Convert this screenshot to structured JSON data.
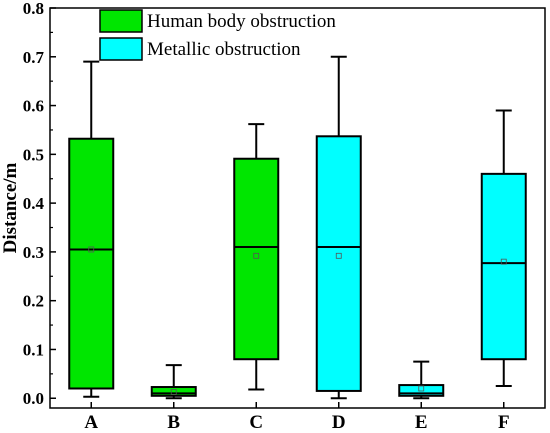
{
  "chart_data": {
    "type": "box",
    "ylabel": "Distance/m",
    "xlabel": "",
    "ylim": [
      -0.02,
      0.8
    ],
    "yticks": [
      "0.0",
      "0.1",
      "0.2",
      "0.3",
      "0.4",
      "0.5",
      "0.6",
      "0.7",
      "0.8"
    ],
    "categories": [
      "A",
      "B",
      "C",
      "D",
      "E",
      "F"
    ],
    "legend": {
      "placement": "top-left inside"
    },
    "series": [
      {
        "name": "Human body obstruction",
        "color": "#00e600",
        "categories": [
          "A",
          "B",
          "C"
        ]
      },
      {
        "name": "Metallic obstruction",
        "color": "#00ffff",
        "categories": [
          "D",
          "E",
          "F"
        ]
      }
    ],
    "boxes": [
      {
        "category": "A",
        "series": 0,
        "whisker_low": 0.003,
        "q1": 0.02,
        "median": 0.305,
        "q3": 0.532,
        "whisker_high": 0.69,
        "mean": 0.305
      },
      {
        "category": "B",
        "series": 0,
        "whisker_low": 0.0,
        "q1": 0.005,
        "median": 0.01,
        "q3": 0.023,
        "whisker_high": 0.068,
        "mean": 0.013
      },
      {
        "category": "C",
        "series": 0,
        "whisker_low": 0.018,
        "q1": 0.08,
        "median": 0.31,
        "q3": 0.491,
        "whisker_high": 0.562,
        "mean": 0.292
      },
      {
        "category": "D",
        "series": 1,
        "whisker_low": 0.0,
        "q1": 0.015,
        "median": 0.31,
        "q3": 0.537,
        "whisker_high": 0.7,
        "mean": 0.292
      },
      {
        "category": "E",
        "series": 1,
        "whisker_low": 0.0,
        "q1": 0.005,
        "median": 0.01,
        "q3": 0.027,
        "whisker_high": 0.075,
        "mean": 0.02
      },
      {
        "category": "F",
        "series": 1,
        "whisker_low": 0.025,
        "q1": 0.08,
        "median": 0.277,
        "q3": 0.46,
        "whisker_high": 0.59,
        "mean": 0.28
      }
    ],
    "grid": false
  }
}
